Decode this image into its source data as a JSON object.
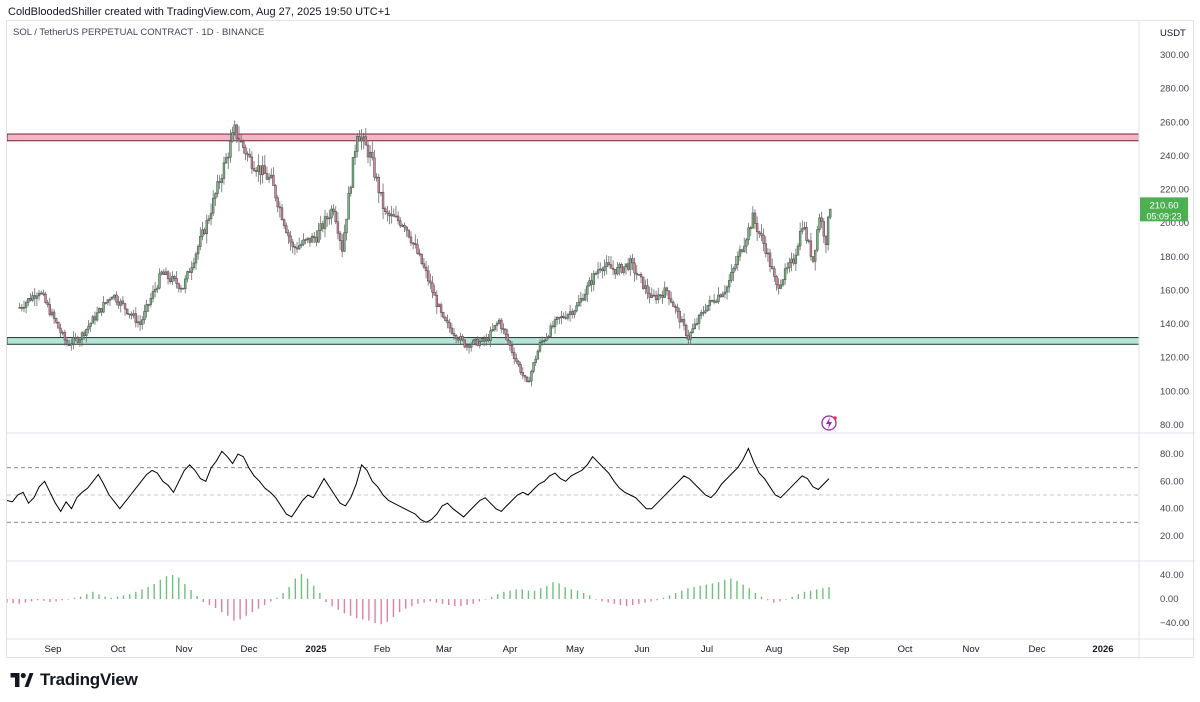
{
  "header": {
    "text": "ColdBloodedShiller created with TradingView.com, Aug 27, 2025 19:50 UTC+1"
  },
  "symbol": {
    "title": "SOL / TetherUS PERPETUAL CONTRACT · 1D · BINANCE"
  },
  "footer": {
    "brand": "TradingView"
  },
  "colors": {
    "up": "#6fbf7f",
    "down": "#e07fa0",
    "candle_body": "#555555",
    "resistance": "#f4b6c6",
    "support": "#b7e4d8",
    "price_tag": "#4caf50"
  },
  "icons": [
    "tradingview-logo-icon",
    "lightning-icon"
  ],
  "chart_data": [
    {
      "type": "candlestick",
      "title": "SOL / TetherUS PERPETUAL CONTRACT · 1D · BINANCE",
      "currency": "USDT",
      "y_ticks": [
        "300.00",
        "280.00",
        "260.00",
        "240.00",
        "220.00",
        "200.00",
        "180.00",
        "160.00",
        "140.00",
        "120.00",
        "100.00",
        "80.00"
      ],
      "ylim": [
        80,
        300
      ],
      "last_price": "210.60",
      "countdown": "05:09:23",
      "resistance_zone": [
        249,
        253
      ],
      "support_zone": [
        128,
        132
      ],
      "x_ticks": [
        "Sep",
        "Oct",
        "Nov",
        "Dec",
        "2025",
        "Feb",
        "Mar",
        "Apr",
        "May",
        "Jun",
        "Jul",
        "Aug",
        "Sep",
        "Oct",
        "Nov",
        "Dec",
        "2026"
      ],
      "x_ticks_bold": [
        "2025",
        "2026"
      ],
      "price_path": [
        [
          "2024-08-15",
          150
        ],
        [
          "2024-08-24",
          160
        ],
        [
          "2024-09-06",
          128
        ],
        [
          "2024-09-12",
          132
        ],
        [
          "2024-09-27",
          158
        ],
        [
          "2024-10-10",
          140
        ],
        [
          "2024-10-20",
          170
        ],
        [
          "2024-10-30",
          162
        ],
        [
          "2024-11-10",
          200
        ],
        [
          "2024-11-23",
          255
        ],
        [
          "2024-11-30",
          238
        ],
        [
          "2024-12-10",
          225
        ],
        [
          "2024-12-20",
          185
        ],
        [
          "2024-12-31",
          192
        ],
        [
          "2025-01-08",
          210
        ],
        [
          "2025-01-12",
          185
        ],
        [
          "2025-01-19",
          255
        ],
        [
          "2025-01-25",
          240
        ],
        [
          "2025-02-01",
          205
        ],
        [
          "2025-02-10",
          200
        ],
        [
          "2025-02-20",
          170
        ],
        [
          "2025-02-28",
          142
        ],
        [
          "2025-03-10",
          128
        ],
        [
          "2025-03-20",
          130
        ],
        [
          "2025-03-26",
          142
        ],
        [
          "2025-04-01",
          124
        ],
        [
          "2025-04-08",
          104
        ],
        [
          "2025-04-14",
          128
        ],
        [
          "2025-04-22",
          142
        ],
        [
          "2025-05-01",
          150
        ],
        [
          "2025-05-12",
          175
        ],
        [
          "2025-05-20",
          172
        ],
        [
          "2025-05-26",
          176
        ],
        [
          "2025-06-05",
          155
        ],
        [
          "2025-06-12",
          160
        ],
        [
          "2025-06-22",
          132
        ],
        [
          "2025-06-30",
          150
        ],
        [
          "2025-07-10",
          162
        ],
        [
          "2025-07-22",
          203
        ],
        [
          "2025-07-28",
          185
        ],
        [
          "2025-08-02",
          162
        ],
        [
          "2025-08-10",
          178
        ],
        [
          "2025-08-14",
          200
        ],
        [
          "2025-08-19",
          178
        ],
        [
          "2025-08-22",
          205
        ],
        [
          "2025-08-25",
          190
        ],
        [
          "2025-08-27",
          210.6
        ]
      ]
    },
    {
      "type": "line",
      "name": "RSI",
      "y_ticks": [
        "80.00",
        "60.00",
        "40.00",
        "20.00"
      ],
      "ylim": [
        15,
        88
      ],
      "levels": [
        70,
        50,
        30
      ],
      "values": [
        46,
        45,
        50,
        52,
        44,
        48,
        56,
        60,
        52,
        44,
        38,
        45,
        40,
        48,
        52,
        55,
        60,
        65,
        58,
        50,
        45,
        40,
        45,
        50,
        55,
        60,
        65,
        68,
        66,
        60,
        57,
        52,
        60,
        68,
        72,
        68,
        62,
        60,
        70,
        75,
        82,
        78,
        73,
        80,
        78,
        70,
        64,
        60,
        55,
        52,
        48,
        42,
        36,
        34,
        40,
        46,
        50,
        48,
        55,
        62,
        56,
        50,
        44,
        42,
        48,
        58,
        72,
        68,
        60,
        56,
        50,
        46,
        44,
        42,
        40,
        38,
        36,
        32,
        30,
        32,
        36,
        42,
        44,
        40,
        37,
        34,
        38,
        42,
        46,
        48,
        44,
        40,
        38,
        42,
        46,
        50,
        52,
        50,
        54,
        58,
        60,
        64,
        66,
        62,
        60,
        64,
        66,
        68,
        72,
        78,
        74,
        70,
        66,
        60,
        55,
        52,
        50,
        48,
        44,
        40,
        40,
        44,
        48,
        52,
        56,
        60,
        64,
        62,
        58,
        54,
        50,
        48,
        52,
        58,
        62,
        66,
        70,
        76,
        84,
        74,
        66,
        62,
        56,
        50,
        48,
        52,
        56,
        60,
        64,
        62,
        56,
        54,
        58,
        62
      ]
    },
    {
      "type": "bar",
      "name": "MACD histogram",
      "y_ticks": [
        "40.00",
        "0.00",
        "−40.00"
      ],
      "ylim": [
        -55,
        55
      ],
      "values": [
        -6,
        -7,
        -8,
        -6,
        -4,
        -2,
        -3,
        -5,
        -4,
        -2,
        0,
        2,
        4,
        8,
        12,
        8,
        4,
        2,
        4,
        6,
        8,
        12,
        16,
        20,
        25,
        32,
        38,
        40,
        36,
        25,
        15,
        5,
        -5,
        -10,
        -15,
        -22,
        -28,
        -36,
        -34,
        -28,
        -22,
        -16,
        -10,
        -4,
        2,
        10,
        20,
        34,
        42,
        34,
        22,
        10,
        -5,
        -12,
        -18,
        -24,
        -28,
        -32,
        -34,
        -36,
        -40,
        -42,
        -38,
        -30,
        -22,
        -16,
        -12,
        -8,
        -6,
        -4,
        -6,
        -8,
        -10,
        -12,
        -12,
        -10,
        -8,
        -4,
        0,
        4,
        8,
        12,
        14,
        16,
        16,
        14,
        14,
        18,
        22,
        28,
        26,
        20,
        16,
        14,
        10,
        6,
        0,
        -4,
        -6,
        -8,
        -10,
        -12,
        -10,
        -8,
        -6,
        -4,
        -2,
        2,
        6,
        10,
        14,
        18,
        20,
        22,
        24,
        26,
        28,
        32,
        34,
        30,
        24,
        18,
        10,
        4,
        -2,
        -6,
        -4,
        0,
        4,
        8,
        12,
        14,
        16,
        18,
        20
      ]
    }
  ]
}
